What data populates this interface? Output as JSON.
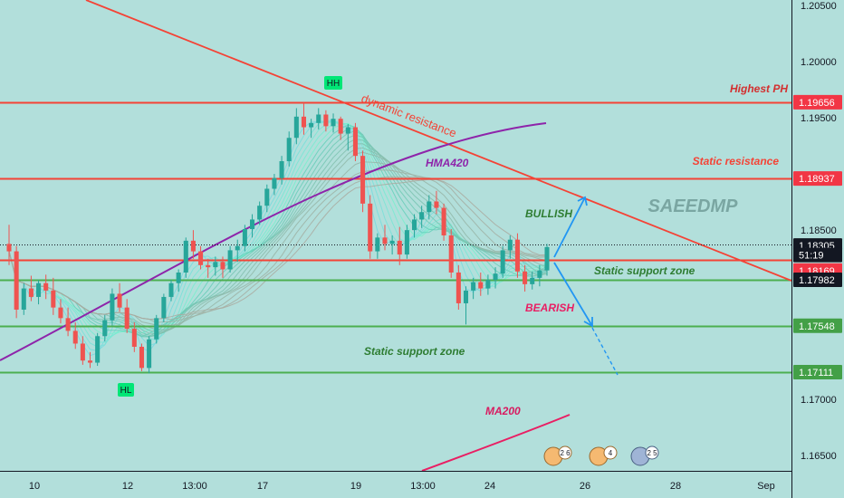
{
  "chart_data": {
    "type": "candlestick",
    "watermark": "SAEEDMP",
    "x_ticks": [
      "10",
      "12",
      "13:00",
      "17",
      "19",
      "13:00",
      "24",
      "26",
      "28",
      "Sep"
    ],
    "y_ticks": [
      "1.20500",
      "1.20000",
      "1.19500",
      "1.18500",
      "1.17000",
      "1.16500"
    ],
    "ylim": [
      1.1618,
      1.2062
    ],
    "price_labels": [
      {
        "value": "1.19656",
        "price": 1.19656,
        "color": "#f23645"
      },
      {
        "value": "1.18937",
        "price": 1.18937,
        "color": "#f23645"
      },
      {
        "value": "1.18305",
        "price": 1.18305,
        "color": "#131722"
      },
      {
        "value": "51:19",
        "price": 1.18215,
        "color": "#131722"
      },
      {
        "value": "1.18169",
        "price": 1.18069,
        "color": "#f23645"
      },
      {
        "value": "1.17982",
        "price": 1.17982,
        "color": "#131722"
      },
      {
        "value": "1.17548",
        "price": 1.17548,
        "color": "#43a047"
      },
      {
        "value": "1.17111",
        "price": 1.17111,
        "color": "#43a047"
      }
    ],
    "levels": [
      {
        "price": 1.19656,
        "color": "#f44336"
      },
      {
        "price": 1.18937,
        "color": "#f44336"
      },
      {
        "price": 1.18169,
        "color": "#f44336"
      },
      {
        "price": 1.17982,
        "color": "#4caf50"
      },
      {
        "price": 1.17548,
        "color": "#4caf50"
      },
      {
        "price": 1.17111,
        "color": "#4caf50"
      }
    ],
    "annotations": {
      "highest_ph": "Highest PH",
      "static_resistance": "Static resistance",
      "static_support_1": "Static support zone",
      "static_support_2": "Static support zone",
      "dynamic_resistance": "dynamic resistance",
      "hma": "HMA420",
      "ma200": "MA200",
      "bullish": "BULLISH",
      "bearish": "BEARISH",
      "hh": "HH",
      "hl": "HL"
    },
    "event_icons": [
      "2 6",
      "4",
      "2 5"
    ],
    "colors": {
      "up": "#26a69a",
      "down": "#ef5350",
      "resistance": "#f44336",
      "support": "#4caf50",
      "hma": "#8e24aa",
      "ma200": "#e91e63",
      "arrow": "#2196f3"
    },
    "candles": [
      {
        "o": 1.1832,
        "h": 1.185,
        "l": 1.1812,
        "c": 1.1825
      },
      {
        "o": 1.1825,
        "h": 1.183,
        "l": 1.1762,
        "c": 1.177
      },
      {
        "o": 1.177,
        "h": 1.1795,
        "l": 1.1765,
        "c": 1.179
      },
      {
        "o": 1.179,
        "h": 1.1802,
        "l": 1.1778,
        "c": 1.1782
      },
      {
        "o": 1.1782,
        "h": 1.1798,
        "l": 1.1775,
        "c": 1.1795
      },
      {
        "o": 1.1795,
        "h": 1.1803,
        "l": 1.178,
        "c": 1.1788
      },
      {
        "o": 1.1788,
        "h": 1.18,
        "l": 1.1765,
        "c": 1.1772
      },
      {
        "o": 1.1772,
        "h": 1.178,
        "l": 1.1757,
        "c": 1.1762
      },
      {
        "o": 1.1762,
        "h": 1.1772,
        "l": 1.1745,
        "c": 1.175
      },
      {
        "o": 1.175,
        "h": 1.1758,
        "l": 1.1733,
        "c": 1.1738
      },
      {
        "o": 1.1738,
        "h": 1.1745,
        "l": 1.1718,
        "c": 1.1722
      },
      {
        "o": 1.1722,
        "h": 1.173,
        "l": 1.1715,
        "c": 1.172
      },
      {
        "o": 1.172,
        "h": 1.1748,
        "l": 1.1717,
        "c": 1.1745
      },
      {
        "o": 1.1745,
        "h": 1.1765,
        "l": 1.174,
        "c": 1.176
      },
      {
        "o": 1.176,
        "h": 1.179,
        "l": 1.1755,
        "c": 1.1785
      },
      {
        "o": 1.1785,
        "h": 1.1795,
        "l": 1.1768,
        "c": 1.1772
      },
      {
        "o": 1.1772,
        "h": 1.178,
        "l": 1.1748,
        "c": 1.1752
      },
      {
        "o": 1.1752,
        "h": 1.1758,
        "l": 1.173,
        "c": 1.1735
      },
      {
        "o": 1.1735,
        "h": 1.1738,
        "l": 1.1712,
        "c": 1.1715
      },
      {
        "o": 1.1715,
        "h": 1.1745,
        "l": 1.171,
        "c": 1.1742
      },
      {
        "o": 1.1742,
        "h": 1.1765,
        "l": 1.1738,
        "c": 1.1762
      },
      {
        "o": 1.1762,
        "h": 1.1785,
        "l": 1.1758,
        "c": 1.1782
      },
      {
        "o": 1.1782,
        "h": 1.1798,
        "l": 1.1778,
        "c": 1.1795
      },
      {
        "o": 1.1795,
        "h": 1.1808,
        "l": 1.1787,
        "c": 1.1805
      },
      {
        "o": 1.1805,
        "h": 1.1838,
        "l": 1.18,
        "c": 1.1835
      },
      {
        "o": 1.1835,
        "h": 1.1845,
        "l": 1.1818,
        "c": 1.1825
      },
      {
        "o": 1.1825,
        "h": 1.183,
        "l": 1.1808,
        "c": 1.1812
      },
      {
        "o": 1.1812,
        "h": 1.1818,
        "l": 1.18,
        "c": 1.181
      },
      {
        "o": 1.181,
        "h": 1.182,
        "l": 1.1802,
        "c": 1.1815
      },
      {
        "o": 1.1815,
        "h": 1.182,
        "l": 1.18,
        "c": 1.1808
      },
      {
        "o": 1.1808,
        "h": 1.183,
        "l": 1.1805,
        "c": 1.1826
      },
      {
        "o": 1.1826,
        "h": 1.1836,
        "l": 1.1815,
        "c": 1.183
      },
      {
        "o": 1.183,
        "h": 1.185,
        "l": 1.1825,
        "c": 1.1846
      },
      {
        "o": 1.1846,
        "h": 1.186,
        "l": 1.1838,
        "c": 1.1855
      },
      {
        "o": 1.1855,
        "h": 1.1872,
        "l": 1.185,
        "c": 1.1868
      },
      {
        "o": 1.1868,
        "h": 1.1888,
        "l": 1.1862,
        "c": 1.1884
      },
      {
        "o": 1.1884,
        "h": 1.1898,
        "l": 1.1878,
        "c": 1.1894
      },
      {
        "o": 1.1894,
        "h": 1.1915,
        "l": 1.1888,
        "c": 1.191
      },
      {
        "o": 1.191,
        "h": 1.1938,
        "l": 1.1905,
        "c": 1.1932
      },
      {
        "o": 1.1932,
        "h": 1.196,
        "l": 1.1926,
        "c": 1.1952
      },
      {
        "o": 1.1952,
        "h": 1.1965,
        "l": 1.1935,
        "c": 1.1942
      },
      {
        "o": 1.1942,
        "h": 1.195,
        "l": 1.1932,
        "c": 1.1946
      },
      {
        "o": 1.1946,
        "h": 1.196,
        "l": 1.194,
        "c": 1.1954
      },
      {
        "o": 1.1954,
        "h": 1.1958,
        "l": 1.1938,
        "c": 1.1943
      },
      {
        "o": 1.1943,
        "h": 1.1955,
        "l": 1.1937,
        "c": 1.195
      },
      {
        "o": 1.195,
        "h": 1.1952,
        "l": 1.193,
        "c": 1.1936
      },
      {
        "o": 1.1936,
        "h": 1.1945,
        "l": 1.192,
        "c": 1.1942
      },
      {
        "o": 1.1942,
        "h": 1.1946,
        "l": 1.191,
        "c": 1.1915
      },
      {
        "o": 1.1915,
        "h": 1.192,
        "l": 1.1862,
        "c": 1.187
      },
      {
        "o": 1.187,
        "h": 1.1878,
        "l": 1.1818,
        "c": 1.1825
      },
      {
        "o": 1.1825,
        "h": 1.1842,
        "l": 1.1818,
        "c": 1.1838
      },
      {
        "o": 1.1838,
        "h": 1.185,
        "l": 1.1826,
        "c": 1.1832
      },
      {
        "o": 1.1832,
        "h": 1.184,
        "l": 1.1822,
        "c": 1.1835
      },
      {
        "o": 1.1835,
        "h": 1.1848,
        "l": 1.1812,
        "c": 1.1822
      },
      {
        "o": 1.1822,
        "h": 1.185,
        "l": 1.1818,
        "c": 1.1845
      },
      {
        "o": 1.1845,
        "h": 1.186,
        "l": 1.1838,
        "c": 1.1855
      },
      {
        "o": 1.1855,
        "h": 1.1868,
        "l": 1.1847,
        "c": 1.1862
      },
      {
        "o": 1.1862,
        "h": 1.1878,
        "l": 1.1855,
        "c": 1.1872
      },
      {
        "o": 1.1872,
        "h": 1.1882,
        "l": 1.186,
        "c": 1.1866
      },
      {
        "o": 1.1866,
        "h": 1.187,
        "l": 1.1835,
        "c": 1.184
      },
      {
        "o": 1.184,
        "h": 1.1846,
        "l": 1.18,
        "c": 1.1805
      },
      {
        "o": 1.1805,
        "h": 1.1812,
        "l": 1.177,
        "c": 1.1776
      },
      {
        "o": 1.1776,
        "h": 1.1792,
        "l": 1.1756,
        "c": 1.1788
      },
      {
        "o": 1.1788,
        "h": 1.18,
        "l": 1.178,
        "c": 1.1796
      },
      {
        "o": 1.1796,
        "h": 1.1805,
        "l": 1.1783,
        "c": 1.179
      },
      {
        "o": 1.179,
        "h": 1.1803,
        "l": 1.1784,
        "c": 1.1798
      },
      {
        "o": 1.1798,
        "h": 1.181,
        "l": 1.179,
        "c": 1.1804
      },
      {
        "o": 1.1804,
        "h": 1.183,
        "l": 1.18,
        "c": 1.1826
      },
      {
        "o": 1.1826,
        "h": 1.184,
        "l": 1.1818,
        "c": 1.1836
      },
      {
        "o": 1.1836,
        "h": 1.1842,
        "l": 1.18,
        "c": 1.1806
      },
      {
        "o": 1.1806,
        "h": 1.1812,
        "l": 1.1787,
        "c": 1.1794
      },
      {
        "o": 1.1794,
        "h": 1.1806,
        "l": 1.1789,
        "c": 1.18
      },
      {
        "o": 1.18,
        "h": 1.1812,
        "l": 1.1792,
        "c": 1.1807
      },
      {
        "o": 1.1807,
        "h": 1.1832,
        "l": 1.1802,
        "c": 1.1829
      }
    ]
  }
}
